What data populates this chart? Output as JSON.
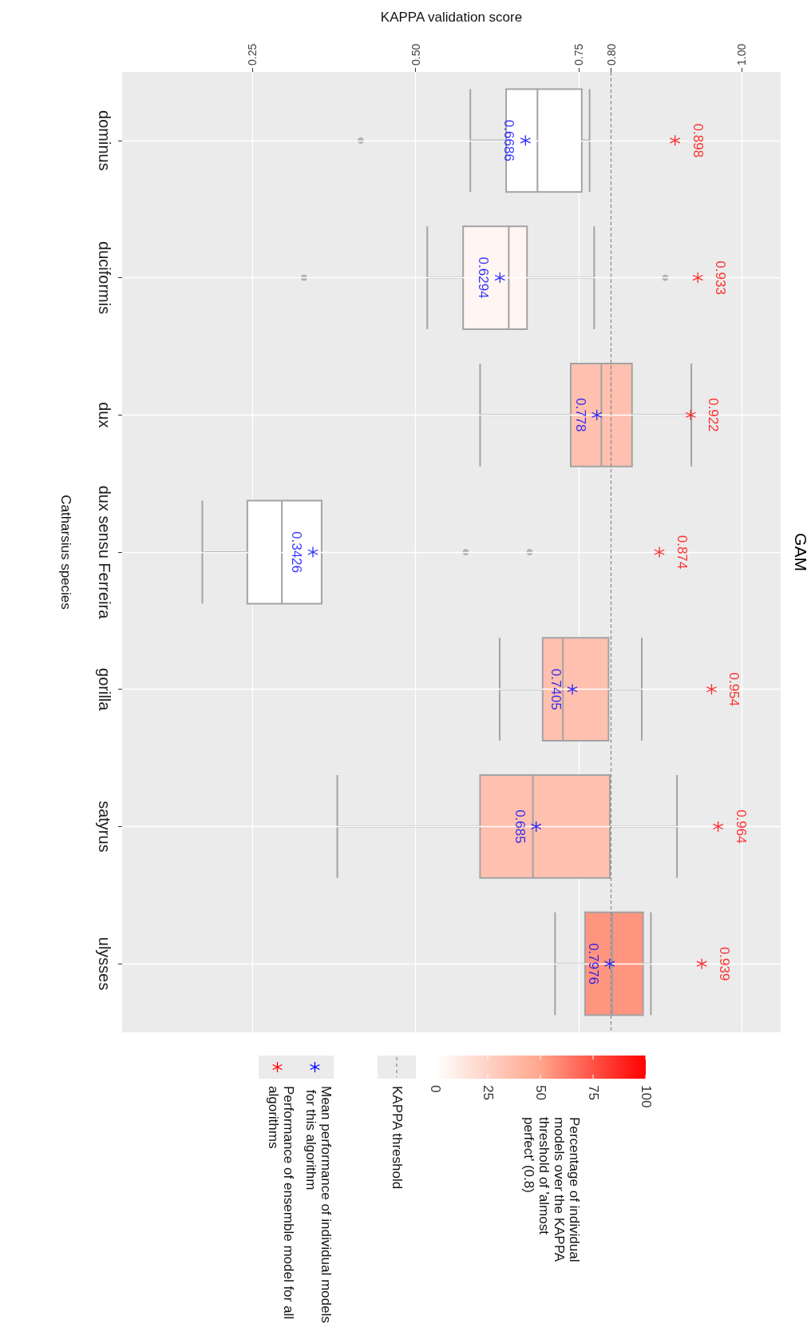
{
  "chart_data": {
    "type": "box",
    "orientation": "horizontal",
    "title": "GAM",
    "xlabel": "KAPPA validation score",
    "ylabel": "Catharsius species",
    "clabel": "Percentage of individual models over the KAPPA threshold of 'almost perfect' (0.8)",
    "categories": [
      "dominus",
      "duciformis",
      "dux",
      "dux sensu Ferreira",
      "gorilla",
      "satyrus",
      "ulysses"
    ],
    "boxes": [
      {
        "low": 0.584,
        "q1": 0.639,
        "median": 0.687,
        "q3": 0.755,
        "high": 0.767,
        "outliers": [
          0.416
        ]
      },
      {
        "low": 0.518,
        "q1": 0.573,
        "median": 0.643,
        "q3": 0.671,
        "high": 0.774,
        "outliers": [
          0.329,
          0.883
        ]
      },
      {
        "low": 0.599,
        "q1": 0.738,
        "median": 0.785,
        "q3": 0.832,
        "high": 0.923
      },
      {
        "low": 0.173,
        "q1": 0.242,
        "median": 0.295,
        "q3": 0.356,
        "high": 0.356,
        "outliers": [
          0.577,
          0.675
        ]
      },
      {
        "low": 0.629,
        "q1": 0.695,
        "median": 0.726,
        "q3": 0.796,
        "high": 0.847
      },
      {
        "low": 0.38,
        "q1": 0.599,
        "median": 0.68,
        "q3": 0.798,
        "high": 0.901
      },
      {
        "low": 0.714,
        "q1": 0.76,
        "median": 0.802,
        "q3": 0.849,
        "high": 0.861
      }
    ],
    "colors": [
      "#ffffff",
      "#fff5f2",
      "#ffc0af",
      "#ffffff",
      "#ffc0af",
      "#ffc0af",
      "#ff957e"
    ],
    "clim": [
      0,
      100
    ],
    "cticks": [
      0,
      25,
      50,
      75,
      100
    ],
    "xlim": [
      0.05,
      1.06
    ],
    "xticks": [
      {
        "value": 0.25,
        "label": "0.25"
      },
      {
        "value": 0.5,
        "label": "0.50"
      },
      {
        "value": 0.75,
        "label": "0.75"
      },
      {
        "value": 0.8,
        "label": "0.80"
      },
      {
        "value": 1,
        "label": "1.00"
      }
    ],
    "grid": true,
    "legend": "bottom",
    "marker": "star",
    "ref_lines": [
      {
        "axis": "x",
        "value": 0.8,
        "label": "KAPPA threshold",
        "color": "#888888",
        "line_style": "dashed"
      }
    ],
    "series": [
      {
        "name": "Mean performance of individual models for this algorithm",
        "type": "scatter",
        "color": "#0000ff",
        "values": [
          0.6686,
          0.6294,
          0.778,
          0.3426,
          0.7405,
          0.685,
          0.7976
        ],
        "value_labels": [
          "0.6686",
          "0.6294",
          "0.778",
          "0.3426",
          "0.7405",
          "0.685",
          "0.7976"
        ]
      },
      {
        "name": "Performance of ensemble model for all algorithms",
        "type": "scatter",
        "color": "#ff0000",
        "values": [
          0.898,
          0.933,
          0.922,
          0.874,
          0.954,
          0.964,
          0.939
        ],
        "value_labels": [
          "0.898",
          "0.933",
          "0.922",
          "0.874",
          "0.954",
          "0.964",
          "0.939"
        ]
      }
    ]
  }
}
